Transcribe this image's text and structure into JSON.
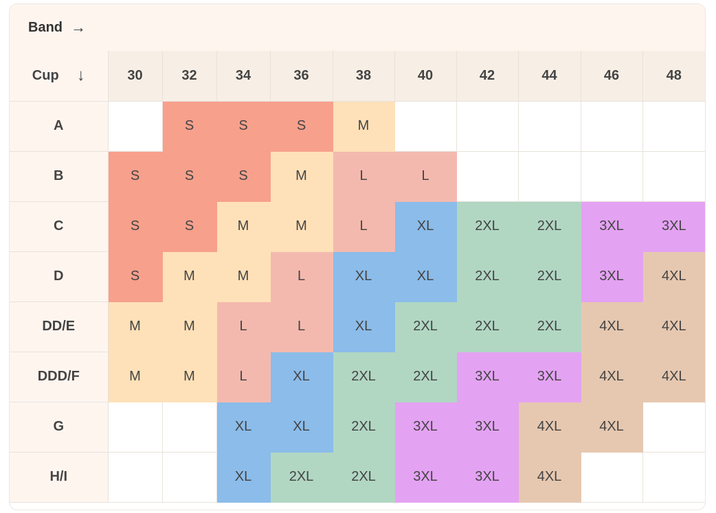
{
  "header": {
    "band_label": "Band",
    "band_arrow": "→",
    "cup_label": "Cup",
    "cup_arrow": "↓"
  },
  "bands": [
    "30",
    "32",
    "34",
    "36",
    "38",
    "40",
    "42",
    "44",
    "46",
    "48"
  ],
  "size_colors": {
    "S": "#f7a08c",
    "M": "#fee1b8",
    "L": "#f4b9ae",
    "XL": "#8bbcea",
    "2XL": "#b1d7c3",
    "3XL": "#e4a2f3",
    "4XL": "#e6c8b0"
  },
  "rows": [
    {
      "cup": "A",
      "cells": [
        "",
        "S",
        "S",
        "S",
        "M",
        "",
        "",
        "",
        "",
        ""
      ]
    },
    {
      "cup": "B",
      "cells": [
        "S",
        "S",
        "S",
        "M",
        "L",
        "L",
        "",
        "",
        "",
        ""
      ]
    },
    {
      "cup": "C",
      "cells": [
        "S",
        "S",
        "M",
        "M",
        "L",
        "XL",
        "2XL",
        "2XL",
        "3XL",
        "3XL"
      ]
    },
    {
      "cup": "D",
      "cells": [
        "S",
        "M",
        "M",
        "L",
        "XL",
        "XL",
        "2XL",
        "2XL",
        "3XL",
        "4XL"
      ]
    },
    {
      "cup": "DD/E",
      "cells": [
        "M",
        "M",
        "L",
        "L",
        "XL",
        "2XL",
        "2XL",
        "2XL",
        "4XL",
        "4XL"
      ]
    },
    {
      "cup": "DDD/F",
      "cells": [
        "M",
        "M",
        "L",
        "XL",
        "2XL",
        "2XL",
        "3XL",
        "3XL",
        "4XL",
        "4XL"
      ]
    },
    {
      "cup": "G",
      "cells": [
        "",
        "",
        "XL",
        "XL",
        "2XL",
        "3XL",
        "3XL",
        "4XL",
        "4XL",
        ""
      ]
    },
    {
      "cup": "H/I",
      "cells": [
        "",
        "",
        "XL",
        "2XL",
        "2XL",
        "3XL",
        "3XL",
        "4XL",
        "",
        ""
      ]
    }
  ]
}
